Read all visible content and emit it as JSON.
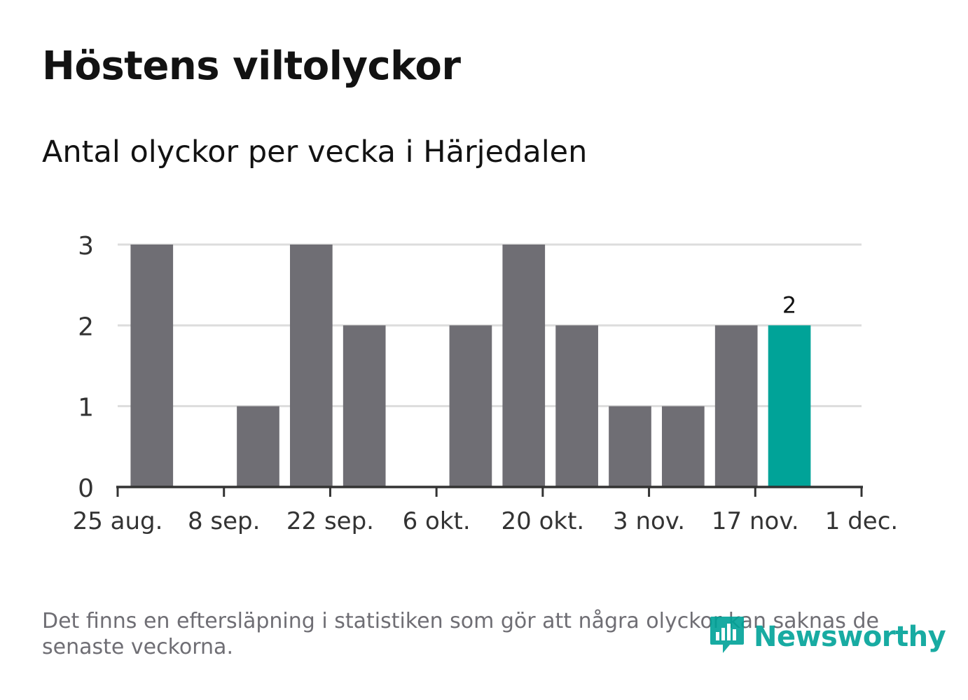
{
  "title": "Höstens viltolyckor",
  "subtitle": "Antal olyckor per vecka i Härjedalen",
  "footnote": "Det finns en eftersläpning i statistiken som gör att några olyckor kan saknas de senaste veckorna.",
  "brand": {
    "name": "Newsworthy",
    "icon": "bar-chart-speech-bubble-icon",
    "color": "#00a398"
  },
  "colors": {
    "bar": "#6f6e74",
    "highlight": "#00a398",
    "grid": "#dddddd",
    "axis": "#333333",
    "text": "#333333"
  },
  "chart_data": {
    "type": "bar",
    "x": [
      "2019-08-26",
      "2019-09-02",
      "2019-09-09",
      "2019-09-16",
      "2019-09-23",
      "2019-09-30",
      "2019-10-07",
      "2019-10-14",
      "2019-10-21",
      "2019-10-28",
      "2019-11-04",
      "2019-11-11",
      "2019-11-18"
    ],
    "values": [
      3,
      0,
      1,
      3,
      2,
      0,
      2,
      3,
      2,
      1,
      1,
      2,
      2
    ],
    "highlight_index": 12,
    "data_labels": [
      {
        "index": 12,
        "text": "2"
      }
    ],
    "x_ticks": [
      {
        "date": "2019-08-25",
        "label": "25 aug."
      },
      {
        "date": "2019-09-08",
        "label": "8 sep."
      },
      {
        "date": "2019-09-22",
        "label": "22 sep."
      },
      {
        "date": "2019-10-06",
        "label": "6 okt."
      },
      {
        "date": "2019-10-20",
        "label": "20 okt."
      },
      {
        "date": "2019-11-03",
        "label": "3 nov."
      },
      {
        "date": "2019-11-17",
        "label": "17 nov."
      },
      {
        "date": "2019-12-01",
        "label": "1 dec."
      }
    ],
    "xlim": [
      "2019-08-25",
      "2019-12-01"
    ],
    "y_ticks": [
      0,
      1,
      2,
      3
    ],
    "ylim": [
      0,
      3
    ],
    "grid": true,
    "legend": "none"
  }
}
